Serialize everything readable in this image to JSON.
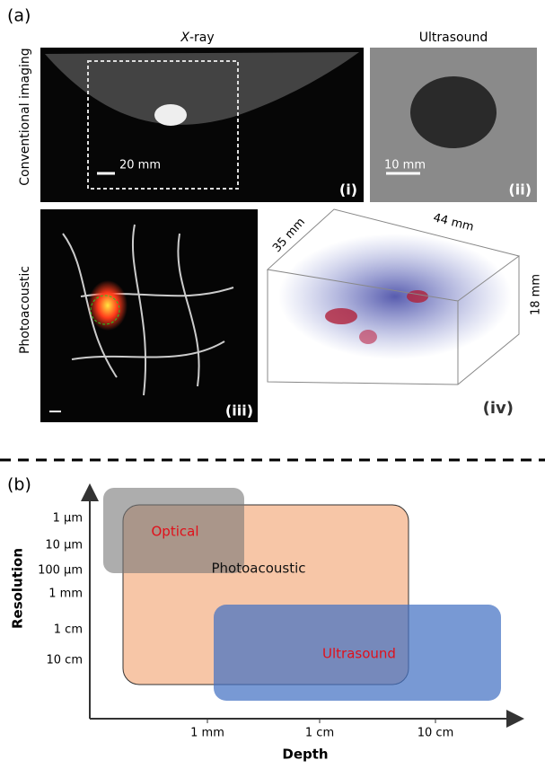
{
  "panel_a": {
    "label": "(a)",
    "row_labels": [
      "Conventional imaging",
      "Photoacoustic"
    ],
    "xray": {
      "title_italic": "X",
      "title_rest": "-ray",
      "scale": "20 mm",
      "tag": "(i)"
    },
    "ultrasound": {
      "title": "Ultrasound",
      "scale": "10 mm",
      "tag": "(ii)"
    },
    "photoacoustic_2d": {
      "tag": "(iii)"
    },
    "photoacoustic_3d": {
      "depth": "35 mm",
      "width": "44 mm",
      "height": "18 mm",
      "tag": "(iv)"
    }
  },
  "panel_b": {
    "label": "(b)",
    "y_axis_label": "Resolution",
    "x_axis_label": "Depth",
    "y_ticks": [
      "1 μm",
      "10 μm",
      "100 μm",
      "1 mm",
      "1 cm",
      "10 cm"
    ],
    "x_ticks": [
      "1 mm",
      "1 cm",
      "10 cm"
    ],
    "regions": [
      "Optical",
      "Photoacoustic",
      "Ultrasound"
    ]
  }
}
